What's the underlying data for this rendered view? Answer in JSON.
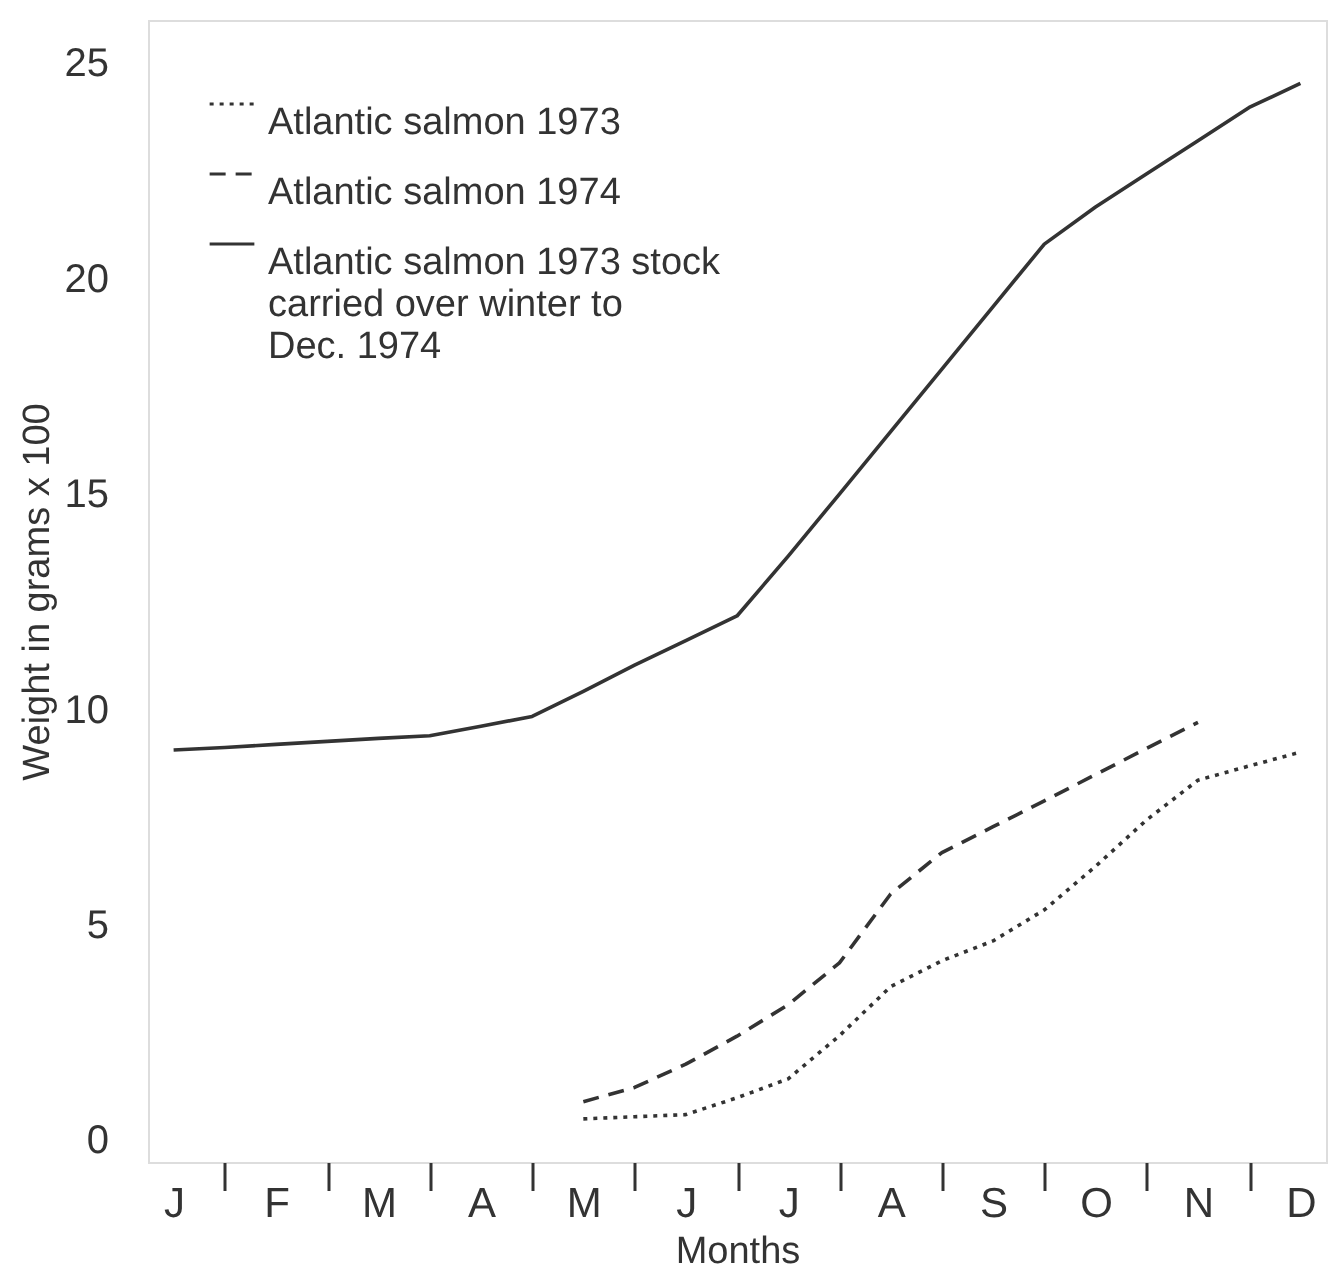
{
  "chart_data": {
    "type": "line",
    "xlabel": "Months",
    "ylabel": "Weight in grams x 100",
    "categories": [
      "J",
      null,
      "F",
      null,
      "M",
      null,
      "A",
      null,
      "M",
      null,
      "J",
      null,
      "J",
      null,
      "A",
      null,
      "S",
      null,
      "O",
      null,
      "N",
      null,
      "D"
    ],
    "ylim": [
      -0.5,
      26
    ],
    "yticks": [
      0,
      5,
      10,
      15,
      20,
      25
    ],
    "grid": false,
    "legend": "top left",
    "marker": "none",
    "series": [
      {
        "name": "Atlantic salmon 1973",
        "color": "#333333",
        "line_style": "dotted",
        "values": [
          null,
          null,
          null,
          null,
          null,
          null,
          null,
          null,
          0.5,
          0.55,
          0.6,
          0.99,
          1.43,
          2.43,
          3.57,
          4.17,
          4.63,
          5.35,
          6.36,
          7.44,
          8.36,
          8.69,
          9.01
        ]
      },
      {
        "name": "Atlantic salmon 1974",
        "color": "#333333",
        "line_style": "dashed",
        "values": [
          null,
          null,
          null,
          null,
          null,
          null,
          null,
          null,
          0.9,
          1.23,
          1.77,
          2.42,
          3.15,
          4.12,
          5.72,
          6.68,
          7.28,
          7.88,
          8.49,
          9.1,
          9.7,
          null,
          null
        ]
      },
      {
        "name": "Atlantic salmon 1973 stock carried over winter to Dec. 1974",
        "color": "#333333",
        "line_style": "solid",
        "values": [
          9.06,
          9.12,
          9.19,
          9.26,
          9.33,
          9.39,
          9.61,
          9.84,
          10.42,
          11.03,
          11.6,
          12.17,
          13.56,
          15.0,
          16.45,
          17.9,
          19.35,
          20.8,
          21.66,
          22.43,
          23.2,
          23.97,
          24.53
        ]
      }
    ]
  }
}
